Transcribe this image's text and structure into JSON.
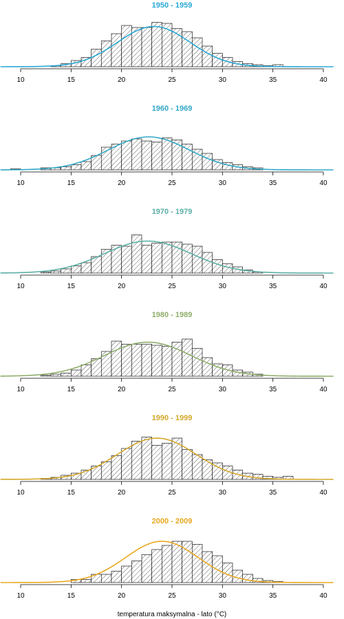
{
  "figure": {
    "xlabel": "temperatura maksymalna - lato (°C)"
  },
  "chart_data": [
    {
      "type": "bar",
      "title": "1950 - 1959",
      "color": "#29a9d6",
      "xlim": [
        10,
        40
      ],
      "xticks": [
        10,
        15,
        20,
        25,
        30,
        35,
        40
      ],
      "bin_width": 1,
      "bins_start": 10,
      "counts": [
        0,
        0,
        0,
        1,
        3,
        6,
        9,
        17,
        25,
        32,
        40,
        38,
        38,
        43,
        42,
        37,
        34,
        28,
        20,
        13,
        9,
        5,
        3,
        2,
        1,
        2,
        0,
        0,
        0,
        0
      ],
      "curve": {
        "mean": 23.2,
        "sd": 3.6,
        "peak": 39
      }
    },
    {
      "type": "bar",
      "title": "1960 - 1969",
      "color": "#32a8c8",
      "xlim": [
        10,
        40
      ],
      "xticks": [
        10,
        15,
        20,
        25,
        30,
        35,
        40
      ],
      "bin_width": 1,
      "bins_start": 9,
      "counts": [
        1,
        0,
        0,
        2,
        2,
        3,
        5,
        8,
        14,
        22,
        25,
        28,
        30,
        28,
        27,
        31,
        29,
        25,
        20,
        16,
        10,
        7,
        5,
        3,
        2,
        0,
        0
      ],
      "curve": {
        "mean": 22.7,
        "sd": 4.0,
        "peak": 32
      }
    },
    {
      "type": "bar",
      "title": "1970 - 1979",
      "color": "#5cb0a6",
      "xlim": [
        10,
        40
      ],
      "xticks": [
        10,
        15,
        20,
        25,
        30,
        35,
        40
      ],
      "bin_width": 1,
      "bins_start": 11,
      "counts": [
        0,
        1,
        2,
        4,
        7,
        10,
        16,
        23,
        27,
        26,
        37,
        27,
        29,
        30,
        30,
        28,
        26,
        20,
        13,
        9,
        6,
        3,
        1
      ],
      "curve": {
        "mean": 22.6,
        "sd": 4.3,
        "peak": 31
      }
    },
    {
      "type": "bar",
      "title": "1980 - 1989",
      "color": "#8fae6b",
      "xlim": [
        10,
        40
      ],
      "xticks": [
        10,
        15,
        20,
        25,
        30,
        35,
        40
      ],
      "bin_width": 1,
      "bins_start": 11,
      "counts": [
        0,
        1,
        2,
        3,
        6,
        11,
        17,
        24,
        34,
        31,
        31,
        31,
        30,
        29,
        33,
        36,
        27,
        18,
        12,
        11,
        6,
        4,
        2
      ],
      "curve": {
        "mean": 22.6,
        "sd": 4.3,
        "peak": 33
      }
    },
    {
      "type": "bar",
      "title": "1990 - 1999",
      "color": "#d4a82a",
      "xlim": [
        10,
        40
      ],
      "xticks": [
        10,
        15,
        20,
        25,
        30,
        35,
        40
      ],
      "bin_width": 1,
      "bins_start": 12,
      "counts": [
        1,
        2,
        4,
        6,
        9,
        13,
        17,
        23,
        30,
        37,
        41,
        33,
        35,
        40,
        29,
        24,
        19,
        16,
        13,
        9,
        6,
        5,
        3,
        2,
        3
      ],
      "curve": {
        "mean": 23.5,
        "sd": 3.9,
        "peak": 40
      }
    },
    {
      "type": "bar",
      "title": "2000 - 2009",
      "color": "#e9a81f",
      "xlim": [
        10,
        40
      ],
      "xticks": [
        10,
        15,
        20,
        25,
        30,
        35,
        40
      ],
      "bin_width": 1,
      "bins_start": 13,
      "counts": [
        0,
        0,
        3,
        3,
        8,
        8,
        11,
        16,
        21,
        27,
        32,
        36,
        40,
        40,
        37,
        30,
        26,
        19,
        12,
        8,
        4,
        2,
        1
      ],
      "curve": {
        "mean": 24.0,
        "sd": 3.6,
        "peak": 40
      }
    }
  ]
}
